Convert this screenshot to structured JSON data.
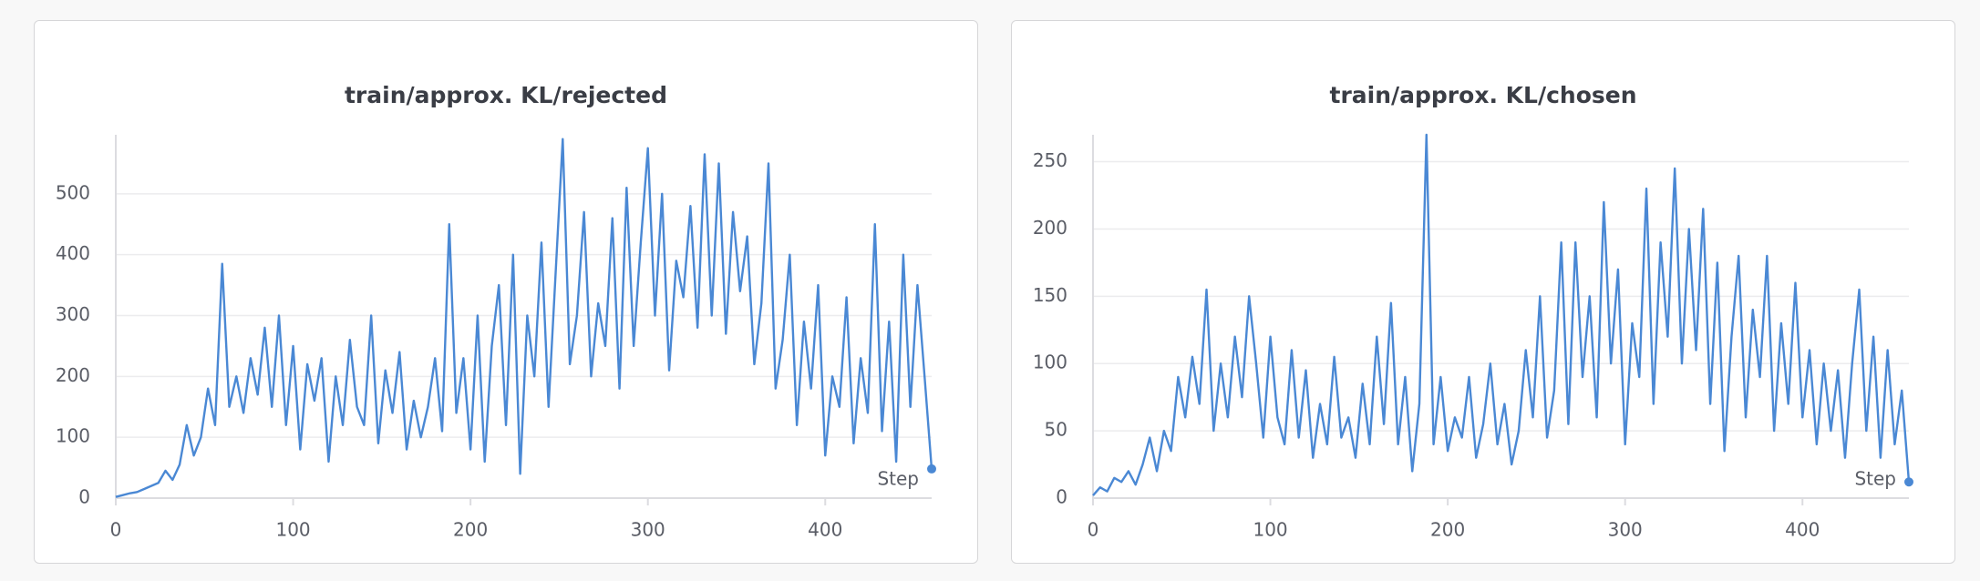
{
  "chart_data": [
    {
      "type": "line",
      "title": "train/approx. KL/rejected",
      "x_label": "Step",
      "color": "#4a88d4",
      "grid": true,
      "xlim": [
        0,
        460
      ],
      "xticks": [
        0,
        100,
        200,
        300,
        400
      ],
      "ylim": [
        0,
        597
      ],
      "yticks": [
        0,
        100,
        200,
        300,
        400,
        500
      ],
      "x": [
        0,
        4,
        8,
        12,
        16,
        20,
        24,
        28,
        32,
        36,
        40,
        44,
        48,
        52,
        56,
        60,
        64,
        68,
        72,
        76,
        80,
        84,
        88,
        92,
        96,
        100,
        104,
        108,
        112,
        116,
        120,
        124,
        128,
        132,
        136,
        140,
        144,
        148,
        152,
        156,
        160,
        164,
        168,
        172,
        176,
        180,
        184,
        188,
        192,
        196,
        200,
        204,
        208,
        212,
        216,
        220,
        224,
        228,
        232,
        236,
        240,
        244,
        248,
        252,
        256,
        260,
        264,
        268,
        272,
        276,
        280,
        284,
        288,
        292,
        296,
        300,
        304,
        308,
        312,
        316,
        320,
        324,
        328,
        332,
        336,
        340,
        344,
        348,
        352,
        356,
        360,
        364,
        368,
        372,
        376,
        380,
        384,
        388,
        392,
        396,
        400,
        404,
        408,
        412,
        416,
        420,
        424,
        428,
        432,
        436,
        440,
        444,
        448,
        452,
        456,
        460
      ],
      "values": [
        2,
        5,
        8,
        10,
        15,
        20,
        25,
        45,
        30,
        55,
        120,
        70,
        100,
        180,
        120,
        385,
        150,
        200,
        140,
        230,
        170,
        280,
        150,
        300,
        120,
        250,
        80,
        220,
        160,
        230,
        60,
        200,
        120,
        260,
        150,
        120,
        300,
        90,
        210,
        140,
        240,
        80,
        160,
        100,
        150,
        230,
        110,
        450,
        140,
        230,
        80,
        300,
        60,
        250,
        350,
        120,
        400,
        40,
        300,
        200,
        420,
        150,
        370,
        590,
        220,
        300,
        470,
        200,
        320,
        250,
        460,
        180,
        510,
        250,
        420,
        575,
        300,
        500,
        210,
        390,
        330,
        480,
        280,
        565,
        300,
        550,
        270,
        470,
        340,
        430,
        220,
        320,
        550,
        180,
        260,
        400,
        120,
        290,
        180,
        350,
        70,
        200,
        150,
        330,
        90,
        230,
        140,
        450,
        110,
        290,
        60,
        400,
        150,
        350,
        200,
        48
      ]
    },
    {
      "type": "line",
      "title": "train/approx. KL/chosen",
      "x_label": "Step",
      "color": "#4a88d4",
      "grid": true,
      "xlim": [
        0,
        460
      ],
      "xticks": [
        0,
        100,
        200,
        300,
        400
      ],
      "ylim": [
        0,
        270
      ],
      "yticks": [
        0,
        50,
        100,
        150,
        200,
        250
      ],
      "x": [
        0,
        4,
        8,
        12,
        16,
        20,
        24,
        28,
        32,
        36,
        40,
        44,
        48,
        52,
        56,
        60,
        64,
        68,
        72,
        76,
        80,
        84,
        88,
        92,
        96,
        100,
        104,
        108,
        112,
        116,
        120,
        124,
        128,
        132,
        136,
        140,
        144,
        148,
        152,
        156,
        160,
        164,
        168,
        172,
        176,
        180,
        184,
        188,
        192,
        196,
        200,
        204,
        208,
        212,
        216,
        220,
        224,
        228,
        232,
        236,
        240,
        244,
        248,
        252,
        256,
        260,
        264,
        268,
        272,
        276,
        280,
        284,
        288,
        292,
        296,
        300,
        304,
        308,
        312,
        316,
        320,
        324,
        328,
        332,
        336,
        340,
        344,
        348,
        352,
        356,
        360,
        364,
        368,
        372,
        376,
        380,
        384,
        388,
        392,
        396,
        400,
        404,
        408,
        412,
        416,
        420,
        424,
        428,
        432,
        436,
        440,
        444,
        448,
        452,
        456,
        460
      ],
      "values": [
        2,
        8,
        5,
        15,
        12,
        20,
        10,
        25,
        45,
        20,
        50,
        35,
        90,
        60,
        105,
        70,
        155,
        50,
        100,
        60,
        120,
        75,
        150,
        100,
        45,
        120,
        60,
        40,
        110,
        45,
        95,
        30,
        70,
        40,
        105,
        45,
        60,
        30,
        85,
        40,
        120,
        55,
        145,
        40,
        90,
        20,
        70,
        270,
        40,
        90,
        35,
        60,
        45,
        90,
        30,
        55,
        100,
        40,
        70,
        25,
        50,
        110,
        60,
        150,
        45,
        80,
        190,
        55,
        190,
        90,
        150,
        60,
        220,
        100,
        170,
        40,
        130,
        90,
        230,
        70,
        190,
        120,
        245,
        100,
        200,
        110,
        215,
        70,
        175,
        35,
        120,
        180,
        60,
        140,
        90,
        180,
        50,
        130,
        70,
        160,
        60,
        110,
        40,
        100,
        50,
        95,
        30,
        100,
        155,
        50,
        120,
        30,
        110,
        40,
        80,
        12
      ]
    }
  ]
}
